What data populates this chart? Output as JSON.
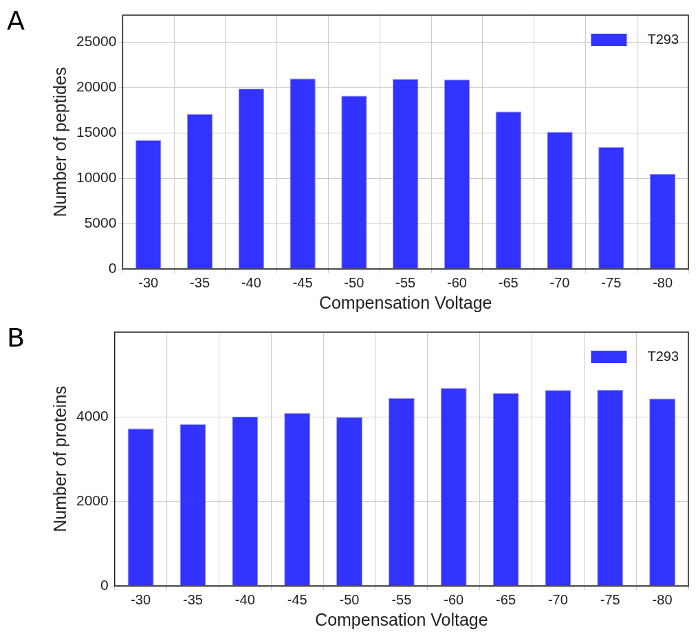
{
  "chart_data": [
    {
      "type": "bar",
      "annotations": [
        "A"
      ],
      "xlabel": "Compensation Voltage",
      "ylabel": "Number of peptides",
      "categories": [
        "-30",
        "-35",
        "-40",
        "-45",
        "-50",
        "-55",
        "-60",
        "-65",
        "-70",
        "-75",
        "-80"
      ],
      "series": [
        {
          "name": "T293",
          "color": "#3333ff",
          "values": [
            14200,
            17100,
            19900,
            21000,
            19100,
            20950,
            20900,
            17350,
            15100,
            13450,
            10500
          ]
        }
      ],
      "ylim": [
        0,
        28000
      ],
      "yticks": [
        0,
        5000,
        10000,
        15000,
        20000,
        25000
      ],
      "grid": true,
      "legend": "top right"
    },
    {
      "type": "bar",
      "annotations": [
        "B"
      ],
      "xlabel": "Compensation Voltage",
      "ylabel": "Number of proteins",
      "categories": [
        "-30",
        "-35",
        "-40",
        "-45",
        "-50",
        "-55",
        "-60",
        "-65",
        "-70",
        "-75",
        "-80"
      ],
      "series": [
        {
          "name": "T293",
          "color": "#3333ff",
          "values": [
            3720,
            3820,
            4000,
            4090,
            3990,
            4440,
            4680,
            4560,
            4630,
            4635,
            4430
          ]
        }
      ],
      "ylim": [
        0,
        6000
      ],
      "yticks": [
        0,
        2000,
        4000
      ],
      "grid": true,
      "legend": "top right"
    }
  ]
}
